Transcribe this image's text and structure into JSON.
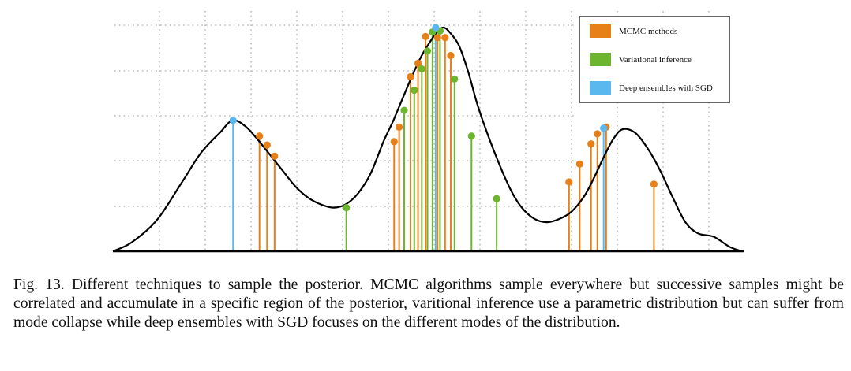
{
  "figure": {
    "legend": [
      {
        "key": "mcmc",
        "label": "MCMC methods",
        "color": "#e8801a"
      },
      {
        "key": "vi",
        "label": "Variational inference",
        "color": "#6db52e"
      },
      {
        "key": "de",
        "label": "Deep ensembles with SGD",
        "color": "#5ab8ef"
      }
    ]
  },
  "chart_data": {
    "type": "line",
    "title": "",
    "xlabel": "",
    "ylabel": "",
    "grid": true,
    "xlim": [
      0,
      100
    ],
    "ylim": [
      0,
      100
    ],
    "curve": {
      "x": [
        0,
        3,
        7,
        11,
        14,
        17,
        19,
        21,
        23,
        25,
        27,
        29,
        31,
        33,
        35,
        37,
        39,
        41,
        43,
        44.5,
        46,
        47.5,
        49,
        50.5,
        51.5,
        52.5,
        53.5,
        55,
        56.5,
        58,
        60,
        62,
        63.5,
        65,
        67,
        69,
        71,
        73,
        75,
        76.5,
        78,
        79.5,
        81,
        83,
        85,
        87,
        89,
        91,
        93,
        95.5,
        98,
        100
      ],
      "y": [
        0,
        4,
        14,
        31,
        44,
        53,
        58.5,
        56,
        50,
        43,
        36,
        29,
        24,
        21,
        19.5,
        21,
        26,
        35,
        49,
        58,
        68,
        78,
        87,
        94,
        98,
        100,
        98,
        92,
        80,
        65,
        49,
        35,
        26,
        19.5,
        14.5,
        13,
        14.5,
        18,
        25,
        33,
        42,
        50,
        54.5,
        53,
        46,
        36,
        24,
        13,
        8,
        6.5,
        2,
        0
      ]
    },
    "series": [
      {
        "name": "MCMC methods",
        "color": "#e8801a",
        "x": [
          23.3,
          24.5,
          25.7,
          44.7,
          45.5,
          47.3,
          48.5,
          49.7,
          51.6,
          52.8,
          53.7,
          72.5,
          74.2,
          76.0,
          77.0,
          78.4,
          86.0
        ],
        "y": [
          51.5,
          47.5,
          42.5,
          49,
          55.5,
          78,
          84,
          96,
          95.5,
          95.5,
          87.5,
          31,
          39,
          48,
          52.5,
          55.5,
          30
        ]
      },
      {
        "name": "Variational inference",
        "color": "#6db52e",
        "x": [
          37.1,
          46.3,
          47.9,
          49.1,
          50.0,
          50.8,
          52.0,
          54.3,
          57.0,
          61.0
        ],
        "y": [
          19.5,
          63,
          72,
          81.5,
          89.5,
          98,
          98.5,
          77,
          51.5,
          23.5
        ]
      },
      {
        "name": "Deep ensembles with SGD",
        "color": "#5ab8ef",
        "x": [
          19.1,
          51.3,
          78.0
        ],
        "y": [
          58.5,
          100,
          55
        ]
      }
    ]
  },
  "caption": {
    "text": "Fig. 13.  Different techniques to sample the posterior. MCMC algorithms sample everywhere but successive samples might be correlated and accumulate in a specific region of the posterior, varitional inference use a parametric distribution but can suffer from mode collapse while deep ensembles with SGD focuses on the different modes of the distribution."
  }
}
